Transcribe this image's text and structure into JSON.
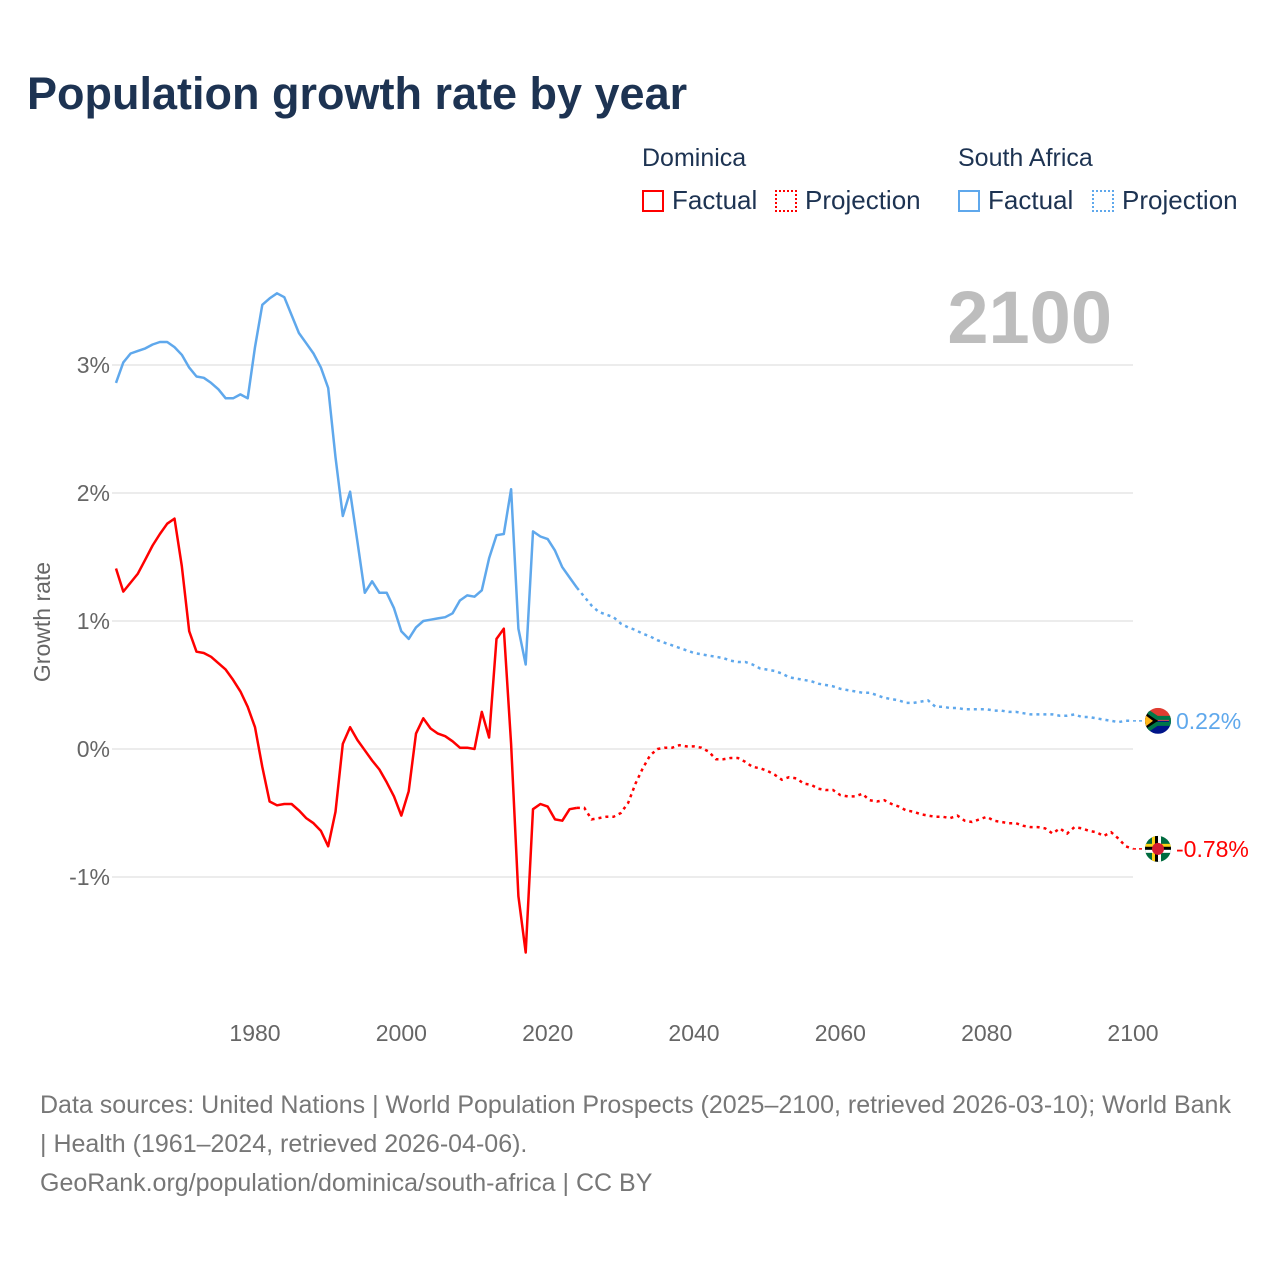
{
  "title": "Population growth rate by year",
  "legend": {
    "groups": [
      {
        "name": "Dominica",
        "color": "#ff0000",
        "factual": "Factual",
        "projection": "Projection"
      },
      {
        "name": "South Africa",
        "color": "#5fa8ec",
        "factual": "Factual",
        "projection": "Projection"
      }
    ]
  },
  "year_display": "2100",
  "footer": {
    "sources": "Data sources: United Nations | World Population Prospects (2025–2100, retrieved 2026-03-10); World Bank | Health (1961–2024, retrieved 2026-04-06).",
    "credit": "GeoRank.org/population/dominica/south-africa | CC BY"
  },
  "chart_data": {
    "type": "line",
    "title": "Population growth rate by year",
    "xlabel": "",
    "ylabel": "Growth rate",
    "xlim": [
      1961,
      2100
    ],
    "ylim": [
      -2.0,
      3.7
    ],
    "x_ticks": [
      1980,
      2000,
      2020,
      2040,
      2060,
      2080,
      2100
    ],
    "x_tick_labels": [
      "1980",
      "2000",
      "2020",
      "2040",
      "2060",
      "2080",
      "2100"
    ],
    "y_ticks": [
      -1,
      0,
      1,
      2,
      3
    ],
    "y_tick_labels": [
      "-1%",
      "0%",
      "1%",
      "2%",
      "3%"
    ],
    "grid": true,
    "legend_position": "top-right",
    "factual_start": 1961,
    "projection_start": 2024,
    "series": [
      {
        "name": "Dominica",
        "color": "#ff0000",
        "end_label": "-0.78%",
        "factual": [
          1.41,
          1.23,
          1.3,
          1.37,
          1.48,
          1.59,
          1.68,
          1.76,
          1.8,
          1.43,
          0.92,
          0.76,
          0.75,
          0.72,
          0.67,
          0.62,
          0.54,
          0.45,
          0.33,
          0.17,
          -0.14,
          -0.41,
          -0.44,
          -0.43,
          -0.43,
          -0.48,
          -0.54,
          -0.58,
          -0.64,
          -0.76,
          -0.49,
          0.04,
          0.17,
          0.07,
          -0.01,
          -0.09,
          -0.16,
          -0.26,
          -0.37,
          -0.52,
          -0.33,
          0.12,
          0.24,
          0.16,
          0.12,
          0.1,
          0.06,
          0.01,
          0.01,
          0.0,
          0.29,
          0.09,
          0.86,
          0.94,
          0.04,
          -1.15,
          -1.59,
          -0.47,
          -0.43,
          -0.45,
          -0.55,
          -0.56,
          -0.47,
          -0.46
        ],
        "projection": [
          -0.46,
          -0.46,
          -0.55,
          -0.54,
          -0.53,
          -0.53,
          -0.5,
          -0.42,
          -0.27,
          -0.15,
          -0.05,
          0.0,
          0.01,
          0.01,
          0.03,
          0.02,
          0.02,
          0.01,
          -0.02,
          -0.08,
          -0.08,
          -0.07,
          -0.07,
          -0.1,
          -0.14,
          -0.15,
          -0.17,
          -0.2,
          -0.24,
          -0.22,
          -0.23,
          -0.27,
          -0.28,
          -0.31,
          -0.32,
          -0.32,
          -0.36,
          -0.37,
          -0.37,
          -0.35,
          -0.4,
          -0.41,
          -0.4,
          -0.43,
          -0.45,
          -0.48,
          -0.49,
          -0.51,
          -0.52,
          -0.53,
          -0.53,
          -0.54,
          -0.52,
          -0.56,
          -0.57,
          -0.55,
          -0.53,
          -0.56,
          -0.57,
          -0.58,
          -0.58,
          -0.6,
          -0.61,
          -0.61,
          -0.62,
          -0.66,
          -0.62,
          -0.66,
          -0.61,
          -0.62,
          -0.64,
          -0.65,
          -0.68,
          -0.65,
          -0.7,
          -0.76,
          -0.78
        ]
      },
      {
        "name": "South Africa",
        "color": "#5fa8ec",
        "end_label": "0.22%",
        "factual": [
          2.86,
          3.02,
          3.09,
          3.11,
          3.13,
          3.16,
          3.18,
          3.18,
          3.14,
          3.08,
          2.98,
          2.91,
          2.9,
          2.86,
          2.81,
          2.74,
          2.74,
          2.77,
          2.74,
          3.14,
          3.47,
          3.52,
          3.56,
          3.53,
          3.39,
          3.25,
          3.17,
          3.09,
          2.98,
          2.82,
          2.28,
          1.82,
          2.01,
          1.62,
          1.22,
          1.31,
          1.22,
          1.22,
          1.1,
          0.92,
          0.86,
          0.95,
          1.0,
          1.01,
          1.02,
          1.03,
          1.06,
          1.16,
          1.2,
          1.19,
          1.24,
          1.49,
          1.67,
          1.68,
          2.03,
          0.94,
          0.66,
          1.7,
          1.66,
          1.64,
          1.55,
          1.42,
          1.34,
          1.26
        ],
        "projection": [
          1.26,
          1.19,
          1.12,
          1.07,
          1.05,
          1.03,
          0.98,
          0.95,
          0.93,
          0.9,
          0.88,
          0.85,
          0.83,
          0.81,
          0.79,
          0.77,
          0.75,
          0.74,
          0.73,
          0.72,
          0.71,
          0.69,
          0.68,
          0.68,
          0.66,
          0.63,
          0.62,
          0.61,
          0.59,
          0.56,
          0.55,
          0.54,
          0.53,
          0.51,
          0.5,
          0.49,
          0.47,
          0.46,
          0.45,
          0.44,
          0.44,
          0.42,
          0.4,
          0.39,
          0.38,
          0.36,
          0.36,
          0.37,
          0.38,
          0.33,
          0.33,
          0.32,
          0.32,
          0.31,
          0.31,
          0.31,
          0.31,
          0.3,
          0.3,
          0.29,
          0.29,
          0.28,
          0.27,
          0.27,
          0.27,
          0.27,
          0.26,
          0.26,
          0.27,
          0.25,
          0.25,
          0.24,
          0.23,
          0.22,
          0.21,
          0.22,
          0.22
        ]
      }
    ]
  }
}
